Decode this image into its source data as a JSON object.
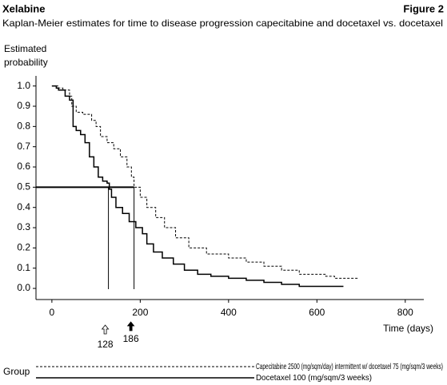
{
  "chart_data": {
    "type": "step",
    "header": "Xelabine",
    "figure_label": "Figure 2",
    "title": "Kaplan-Meier estimates for time to disease progression capecitabine and docetaxel vs. docetaxel",
    "ylabel": [
      "Estimated",
      "probability"
    ],
    "xlabel": "Time (days)",
    "legend_title": "Group",
    "xlim": [
      -36,
      842
    ],
    "ylim": [
      -0.055,
      1.05
    ],
    "xticks": [
      0,
      200,
      400,
      600,
      800
    ],
    "yticks": [
      {
        "value": 0,
        "label": "0.0"
      },
      0.1,
      0.2,
      0.3,
      0.4,
      0.5,
      0.6,
      0.7,
      0.8,
      0.9,
      {
        "value": 1,
        "label": "1.0"
      }
    ],
    "medians": [
      128,
      186
    ],
    "median_level": 0.5,
    "series": [
      {
        "name": "Capecitabine 2500 (mg/sqm/day) intermittent w/ docetaxel 75 (mg/sqm/3 weeks)",
        "color": "#000000",
        "dash": true,
        "x": [
          0,
          15,
          25,
          40,
          45,
          55,
          70,
          90,
          100,
          110,
          125,
          140,
          155,
          170,
          180,
          186,
          200,
          215,
          235,
          255,
          280,
          310,
          350,
          400,
          440,
          480,
          520,
          560,
          620,
          640,
          695
        ],
        "values": [
          1.0,
          0.99,
          0.98,
          0.95,
          0.9,
          0.87,
          0.86,
          0.83,
          0.8,
          0.75,
          0.72,
          0.69,
          0.65,
          0.6,
          0.55,
          0.5,
          0.45,
          0.4,
          0.35,
          0.3,
          0.25,
          0.2,
          0.17,
          0.15,
          0.13,
          0.11,
          0.09,
          0.07,
          0.06,
          0.05,
          0.05
        ]
      },
      {
        "name": "Docetaxel 100 (mg/sqm/3 weeks)",
        "color": "#000000",
        "dash": false,
        "x": [
          0,
          10,
          15,
          30,
          40,
          48,
          55,
          65,
          75,
          85,
          95,
          105,
          115,
          125,
          130,
          135,
          145,
          160,
          175,
          190,
          205,
          215,
          230,
          250,
          275,
          300,
          330,
          360,
          400,
          440,
          480,
          520,
          560,
          660
        ],
        "values": [
          1.0,
          0.99,
          0.98,
          0.95,
          0.93,
          0.8,
          0.78,
          0.76,
          0.72,
          0.65,
          0.6,
          0.55,
          0.53,
          0.52,
          0.49,
          0.45,
          0.4,
          0.37,
          0.33,
          0.3,
          0.27,
          0.22,
          0.18,
          0.15,
          0.12,
          0.09,
          0.07,
          0.06,
          0.05,
          0.04,
          0.03,
          0.02,
          0.01,
          0.01
        ]
      }
    ]
  }
}
